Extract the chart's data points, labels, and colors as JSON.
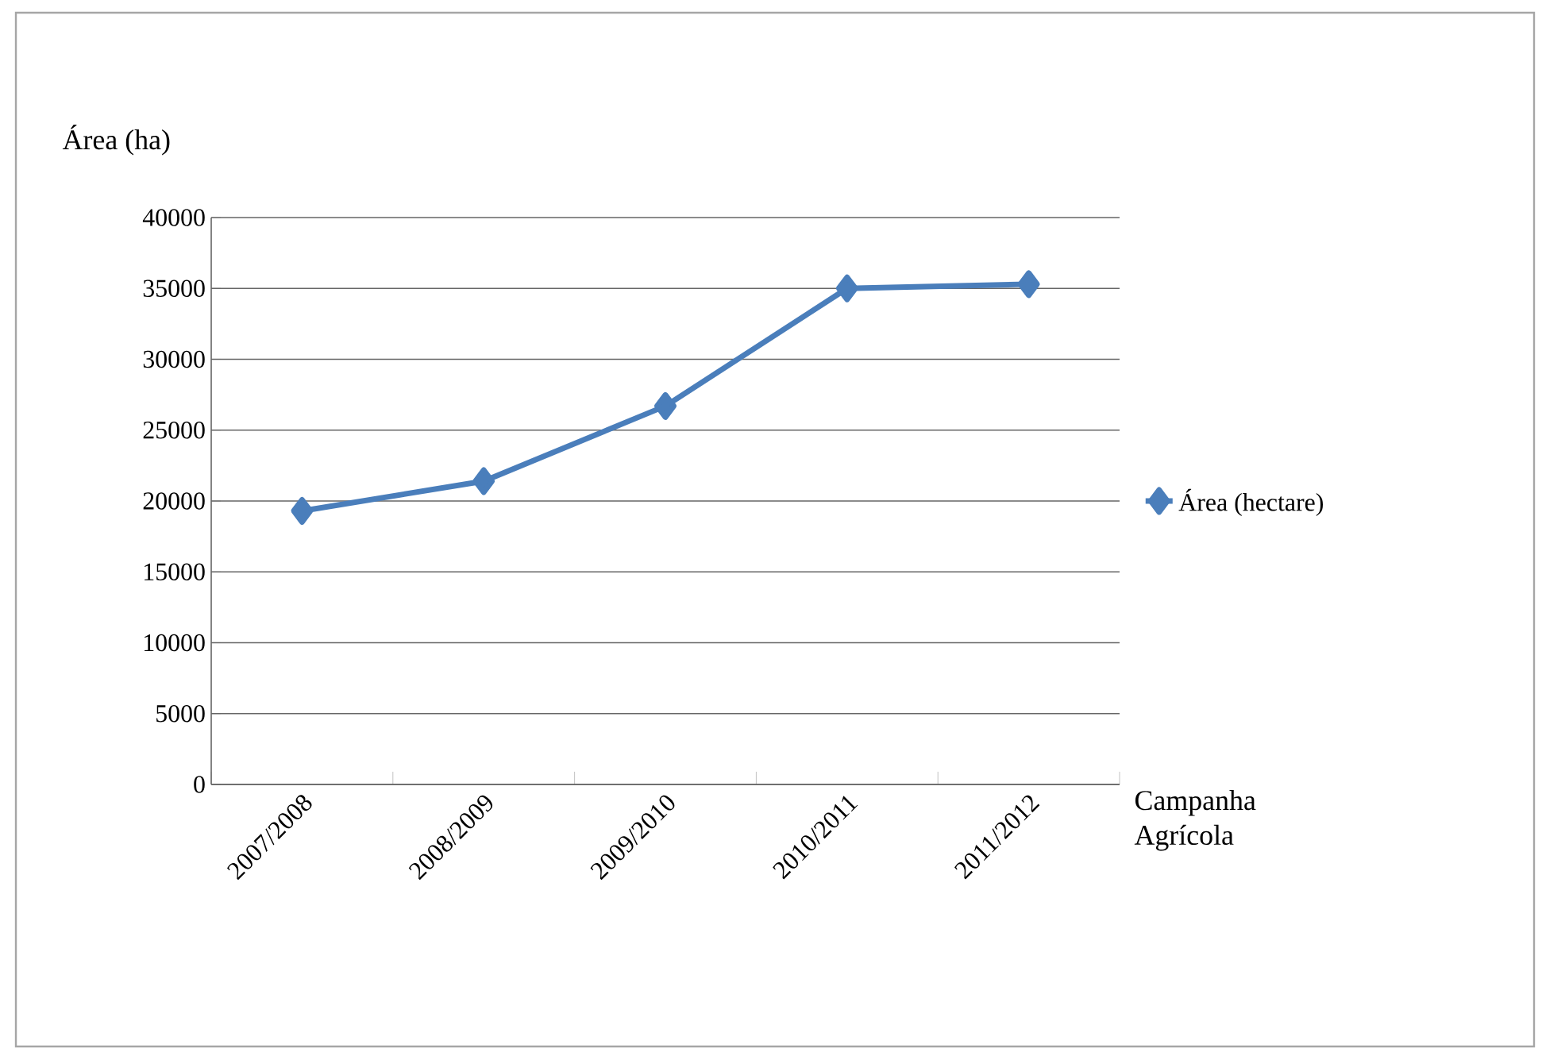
{
  "chart_data": {
    "type": "line",
    "xlabel": "Campanha Agrícola",
    "ylabel": "Área (ha)",
    "categories": [
      "2007/2008",
      "2008/2009",
      "2009/2010",
      "2010/2011",
      "2011/2012"
    ],
    "series": [
      {
        "name": "Área (hectare)",
        "color": "#4a7ebb",
        "values": [
          19300,
          21400,
          26700,
          35000,
          35300
        ]
      }
    ],
    "ylim": [
      0,
      40000
    ],
    "yticks": [
      0,
      5000,
      10000,
      15000,
      20000,
      25000,
      30000,
      35000,
      40000
    ],
    "grid": "y",
    "legend": "right",
    "marker": "diamond",
    "line_style": "solid"
  }
}
